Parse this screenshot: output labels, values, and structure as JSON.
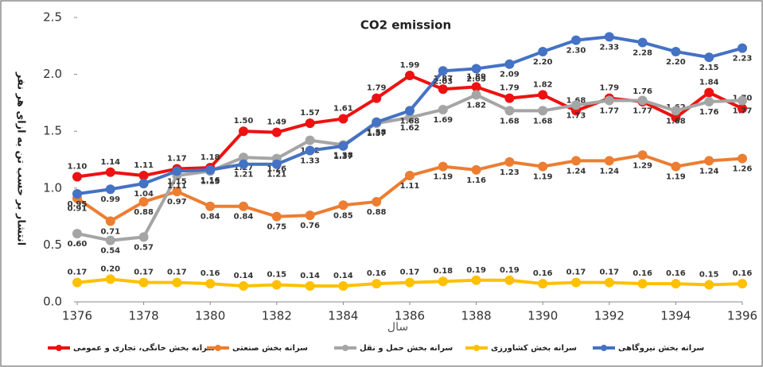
{
  "chart_data": {
    "type": "line",
    "title": "CO2 emission",
    "xlabel": "سال",
    "ylabel": "انتشار بر حسب تن به ازای هر نفر",
    "x": [
      1376,
      1377,
      1378,
      1379,
      1380,
      1381,
      1382,
      1383,
      1384,
      1385,
      1386,
      1387,
      1388,
      1389,
      1390,
      1391,
      1392,
      1393,
      1394,
      1395,
      1396
    ],
    "xlim": [
      1376,
      1396
    ],
    "xticks": [
      1376,
      1378,
      1380,
      1382,
      1384,
      1386,
      1388,
      1390,
      1392,
      1394,
      1396
    ],
    "ylim": [
      0,
      2.5
    ],
    "yticks": [
      {
        "value": 0,
        "label": "0.0"
      },
      {
        "value": 0.5,
        "label": "0.5"
      },
      {
        "value": 1,
        "label": "1.0"
      },
      {
        "value": 1.5,
        "label": "1.5"
      },
      {
        "value": 2,
        "label": "2.0"
      },
      {
        "value": 2.5,
        "label": "2.5"
      }
    ],
    "series": [
      {
        "name": "سرانه بخش خانگی، تجاری و عمومی",
        "color": "#ee1111",
        "values": [
          1.1,
          1.14,
          1.11,
          1.17,
          1.18,
          1.5,
          1.49,
          1.57,
          1.61,
          1.79,
          1.99,
          1.87,
          1.89,
          1.79,
          1.82,
          1.68,
          1.79,
          1.76,
          1.62,
          1.84,
          1.7
        ],
        "value_labels": [
          "1.10",
          "1.14",
          "1.11",
          "1.17",
          "1.18",
          "1.50",
          "1.49",
          "1.57",
          "1.61",
          "1.79",
          "1.99",
          "1.87",
          "1.89",
          "1.79",
          "1.82",
          "1.68",
          "1.79",
          "1.76",
          "1.62",
          "1.84",
          "1.70"
        ]
      },
      {
        "name": "سرانه بخش صنعتی",
        "color": "#ed7d31",
        "values": [
          0.91,
          0.71,
          0.88,
          0.97,
          0.84,
          0.84,
          0.75,
          0.76,
          0.85,
          0.88,
          1.11,
          1.19,
          1.16,
          1.23,
          1.19,
          1.24,
          1.24,
          1.29,
          1.19,
          1.24,
          1.26
        ],
        "value_labels": [
          "0.91",
          "0.71",
          "0.88",
          "0.97",
          "0.84",
          "0.84",
          "0.75",
          "0.76",
          "0.85",
          "0.88",
          "1.11",
          "1.19",
          "1.16",
          "1.23",
          "1.19",
          "1.24",
          "1.24",
          "1.29",
          "1.19",
          "1.24",
          "1.26"
        ]
      },
      {
        "name": "سرانه بخش حمل و نقل",
        "color": "#a5a5a5",
        "values": [
          0.6,
          0.54,
          0.57,
          1.11,
          1.15,
          1.27,
          1.26,
          1.42,
          1.38,
          1.57,
          1.62,
          1.69,
          1.82,
          1.68,
          1.68,
          1.73,
          1.77,
          1.77,
          1.68,
          1.76,
          1.77
        ],
        "value_labels": [
          "0.60",
          "0.54",
          "0.57",
          "1.11",
          "1.15",
          "1.27",
          "1.26",
          "1.42",
          "1.38",
          "1.57",
          "1.62",
          "1.69",
          "1.82",
          "1.68",
          "1.68",
          "1.73",
          "1.77",
          "1.77",
          "1.68",
          "1.76",
          "1.77"
        ]
      },
      {
        "name": "سرانه بخش کشاورزی",
        "color": "#ffc000",
        "values": [
          0.17,
          0.2,
          0.17,
          0.17,
          0.16,
          0.14,
          0.15,
          0.14,
          0.14,
          0.16,
          0.17,
          0.18,
          0.19,
          0.19,
          0.16,
          0.17,
          0.17,
          0.16,
          0.16,
          0.15,
          0.16
        ],
        "value_labels": [
          "0.17",
          "0.20",
          "0.17",
          "0.17",
          "0.16",
          "0.14",
          "0.15",
          "0.14",
          "0.14",
          "0.16",
          "0.17",
          "0.18",
          "0.19",
          "0.19",
          "0.16",
          "0.17",
          "0.17",
          "0.16",
          "0.16",
          "0.15",
          "0.16"
        ]
      },
      {
        "name": "سرانه بخش نیروگاهی",
        "color": "#4472c4",
        "values": [
          0.95,
          0.99,
          1.04,
          1.15,
          1.16,
          1.21,
          1.21,
          1.33,
          1.37,
          1.58,
          1.68,
          2.03,
          2.05,
          2.09,
          2.2,
          2.3,
          2.33,
          2.28,
          2.2,
          2.15,
          2.23
        ],
        "value_labels": [
          "0.95",
          "0.99",
          "1.04",
          "1.15",
          "1.16",
          "1.21",
          "1.21",
          "1.33",
          "1.37",
          "1.58",
          "1.68",
          "2.03",
          "2.05",
          "2.09",
          "2.20",
          "2.30",
          "2.33",
          "2.28",
          "2.20",
          "2.15",
          "2.23"
        ]
      }
    ]
  }
}
